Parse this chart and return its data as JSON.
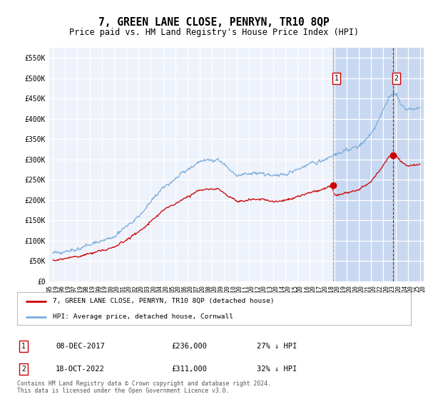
{
  "title": "7, GREEN LANE CLOSE, PENRYN, TR10 8QP",
  "subtitle": "Price paid vs. HM Land Registry's House Price Index (HPI)",
  "title_fontsize": 10.5,
  "subtitle_fontsize": 8.5,
  "ylabel_ticks": [
    "£0",
    "£50K",
    "£100K",
    "£150K",
    "£200K",
    "£250K",
    "£300K",
    "£350K",
    "£400K",
    "£450K",
    "£500K",
    "£550K"
  ],
  "ytick_values": [
    0,
    50000,
    100000,
    150000,
    200000,
    250000,
    300000,
    350000,
    400000,
    450000,
    500000,
    550000
  ],
  "ylim": [
    0,
    575000
  ],
  "xlim_start": 1994.7,
  "xlim_end": 2025.3,
  "background_color": "#ffffff",
  "plot_bg_color": "#eef2fa",
  "grid_color": "#ffffff",
  "hpi_line_color": "#7aabdb",
  "price_line_color": "#cc0000",
  "shade_color": "#c8d8f0",
  "transaction1_x": 2017.92,
  "transaction1_y": 236000,
  "transaction2_x": 2022.79,
  "transaction2_y": 311000,
  "t1_vline_color": "#aaaaaa",
  "t2_vline_color": "#cc0000",
  "transaction1_label": "08-DEC-2017",
  "transaction1_price": "£236,000",
  "transaction1_hpi": "27% ↓ HPI",
  "transaction2_label": "18-OCT-2022",
  "transaction2_price": "£311,000",
  "transaction2_hpi": "32% ↓ HPI",
  "legend_label_price": "7, GREEN LANE CLOSE, PENRYN, TR10 8QP (detached house)",
  "legend_label_hpi": "HPI: Average price, detached house, Cornwall",
  "footnote": "Contains HM Land Registry data © Crown copyright and database right 2024.\nThis data is licensed under the Open Government Licence v3.0."
}
